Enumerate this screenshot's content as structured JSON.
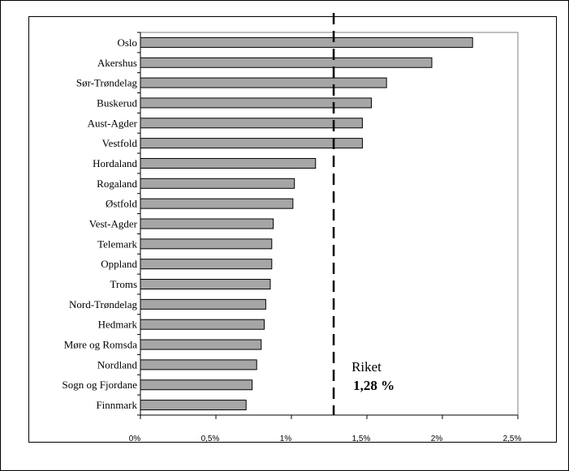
{
  "chart_data": {
    "type": "bar",
    "orientation": "horizontal",
    "categories": [
      "Oslo",
      "Akershus",
      "Sør-Trøndelag",
      "Buskerud",
      "Aust-Agder",
      "Vestfold",
      "Hordaland",
      "Rogaland",
      "Østfold",
      "Vest-Agder",
      "Telemark",
      "Oppland",
      "Troms",
      "Nord-Trøndelag",
      "Hedmark",
      "Møre og Romsda",
      "Nordland",
      "Sogn og Fjordane",
      "Finnmark"
    ],
    "values": [
      2.2,
      1.93,
      1.63,
      1.53,
      1.47,
      1.47,
      1.16,
      1.02,
      1.01,
      0.88,
      0.87,
      0.87,
      0.86,
      0.83,
      0.82,
      0.8,
      0.77,
      0.74,
      0.7
    ],
    "xlim": [
      0,
      2.5
    ],
    "x_ticks": [
      0,
      0.5,
      1,
      1.5,
      2,
      2.5
    ],
    "x_tick_labels": [
      "0%",
      "0,5%",
      "1%",
      "1,5%",
      "2%",
      "2,5%"
    ],
    "reference_line": {
      "value": 1.28,
      "style": "dashed",
      "label": "Riket",
      "value_label": "1,28 %"
    },
    "bar_color": "#a6a6a6",
    "bar_edge_color": "#000000",
    "grid": false
  }
}
